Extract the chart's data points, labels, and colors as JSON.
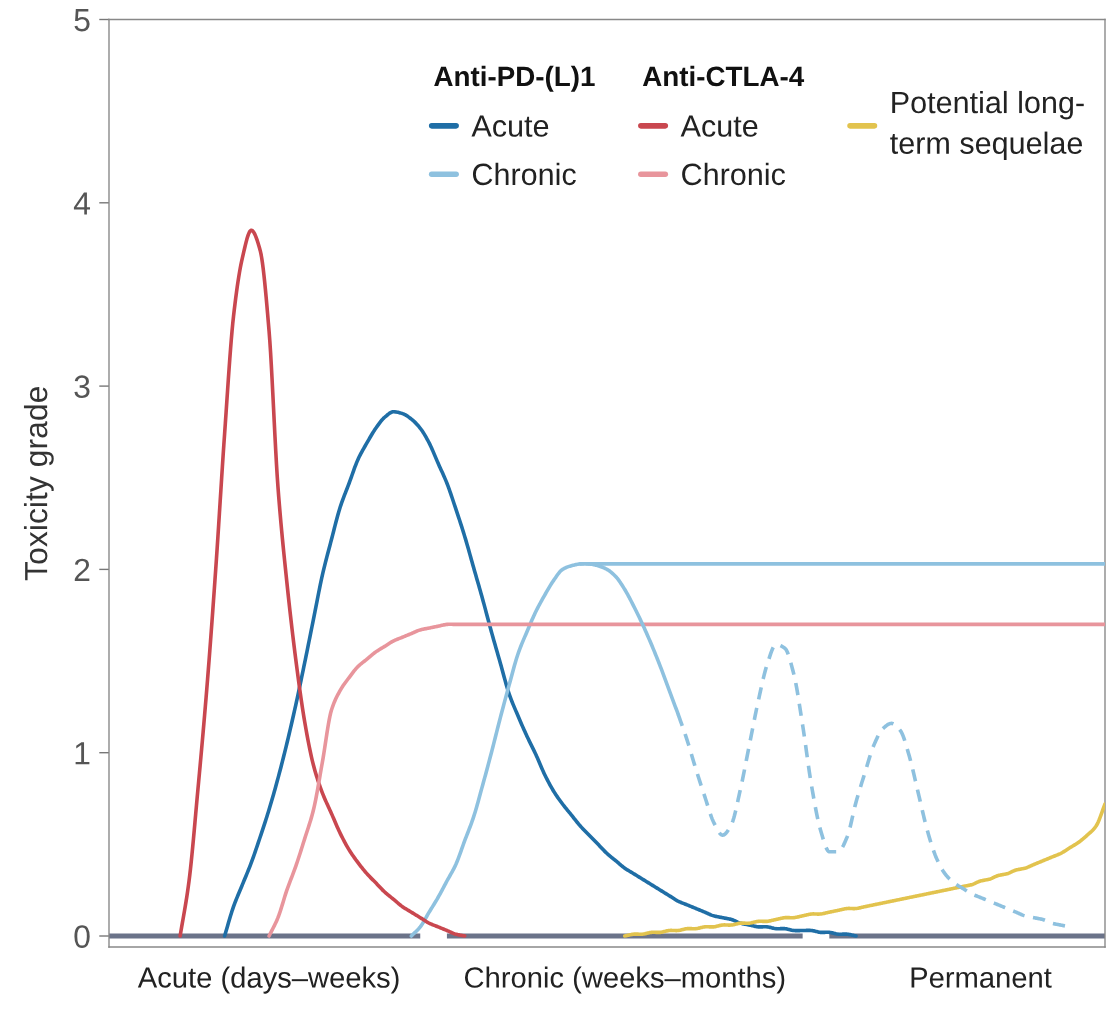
{
  "chart_data": {
    "type": "line",
    "ylabel": "Toxicity grade",
    "categories": [
      null,
      null,
      null,
      null,
      null,
      null,
      null,
      null,
      null,
      null,
      null,
      null,
      null,
      null,
      null,
      null,
      null,
      null,
      "Acute (days–weeks)",
      null,
      null,
      null,
      null,
      null,
      null,
      null,
      null,
      null,
      null,
      null,
      null,
      null,
      null,
      null,
      null,
      null,
      null,
      null,
      null,
      null,
      null,
      null,
      null,
      null,
      null,
      null,
      null,
      null,
      null,
      null,
      null,
      null,
      null,
      null,
      null,
      null,
      null,
      null,
      "Chronic (weeks–months)",
      null,
      null,
      null,
      null,
      null,
      null,
      null,
      null,
      null,
      null,
      null,
      null,
      null,
      null,
      null,
      null,
      null,
      null,
      null,
      null,
      null,
      null,
      null,
      null,
      null,
      null,
      null,
      null,
      null,
      null,
      null,
      null,
      null,
      null,
      null,
      null,
      null,
      null,
      null,
      "Permanent",
      null,
      null,
      null,
      null,
      null,
      null,
      null,
      null,
      null,
      null,
      null,
      null,
      null,
      null
    ],
    "ylim": [
      -0.06,
      5
    ],
    "yticks": [
      0,
      1,
      2,
      3,
      4,
      5
    ],
    "legend": "top right",
    "annotations": [
      "Anti-PD-(L)1",
      "Anti-CTLA-4"
    ],
    "series": [
      {
        "color": "#6b7389",
        "values": [
          0,
          0,
          0,
          0,
          0,
          0,
          0,
          0,
          0,
          0,
          0,
          0,
          0,
          0,
          0,
          0,
          0,
          0,
          0,
          0,
          0,
          0,
          0,
          0,
          0,
          0,
          0,
          0,
          0,
          0,
          0,
          0,
          0,
          0,
          0,
          0,
          null,
          null,
          0,
          0,
          0,
          0,
          0,
          0,
          0,
          0,
          0,
          0,
          0,
          0,
          0,
          0,
          0,
          0,
          0,
          0,
          0,
          0,
          0,
          0,
          0,
          0,
          0,
          0,
          0,
          0,
          0,
          0,
          0,
          0,
          0,
          0,
          0,
          0,
          0,
          0,
          0,
          0,
          0,
          null,
          null,
          0,
          0,
          0,
          0,
          0,
          0,
          0,
          0,
          0,
          0,
          0,
          0,
          0,
          0,
          0,
          0,
          0,
          0,
          0,
          0,
          0,
          0,
          0,
          0,
          0,
          0,
          0,
          0,
          0,
          0,
          0,
          0
        ]
      },
      {
        "name": "Acute",
        "color": "#1f6ea6",
        "values": [
          null,
          null,
          null,
          null,
          null,
          null,
          null,
          null,
          null,
          null,
          null,
          null,
          null,
          0,
          0.16,
          0.28,
          0.4,
          0.54,
          0.69,
          0.86,
          1.05,
          1.26,
          1.49,
          1.73,
          1.97,
          2.16,
          2.34,
          2.47,
          2.6,
          2.69,
          2.77,
          2.83,
          2.86,
          2.85,
          2.82,
          2.77,
          2.69,
          2.58,
          2.47,
          2.33,
          2.18,
          2.01,
          1.84,
          1.66,
          1.49,
          1.32,
          1.2,
          1.09,
          0.99,
          0.88,
          0.79,
          0.72,
          0.66,
          0.6,
          0.55,
          0.5,
          0.45,
          0.41,
          0.37,
          0.34,
          0.31,
          0.28,
          0.25,
          0.22,
          0.19,
          0.17,
          0.15,
          0.13,
          0.11,
          0.1,
          0.09,
          0.07,
          0.06,
          0.05,
          0.05,
          0.04,
          0.04,
          0.03,
          0.03,
          0.03,
          0.02,
          0.02,
          0.01,
          0.01,
          0,
          null,
          null,
          null,
          null,
          null,
          null,
          null,
          null,
          null,
          null,
          null,
          null,
          null,
          null,
          null,
          null,
          null,
          null,
          null,
          null,
          null,
          null,
          null,
          null,
          null,
          null,
          null,
          null
        ]
      },
      {
        "name": "Chronic",
        "color": "#8ec1df",
        "values": [
          null,
          null,
          null,
          null,
          null,
          null,
          null,
          null,
          null,
          null,
          null,
          null,
          null,
          null,
          null,
          null,
          null,
          null,
          null,
          null,
          null,
          null,
          null,
          null,
          null,
          null,
          null,
          null,
          null,
          null,
          null,
          null,
          null,
          null,
          0,
          0.05,
          0.13,
          0.21,
          0.3,
          0.39,
          0.52,
          0.65,
          0.82,
          1.0,
          1.19,
          1.37,
          1.54,
          1.66,
          1.77,
          1.86,
          1.94,
          2.0,
          2.02,
          2.03,
          2.03,
          2.03,
          2.03,
          2.03,
          2.03,
          2.03,
          2.03,
          2.03,
          2.03,
          2.03,
          2.03,
          2.03,
          2.03,
          2.03,
          2.03,
          2.03,
          2.03,
          2.03,
          2.03,
          2.03,
          2.03,
          2.03,
          2.03,
          2.03,
          2.03,
          2.03,
          2.03,
          2.03,
          2.03,
          2.03,
          2.03,
          2.03,
          2.03,
          2.03,
          2.03,
          2.03,
          2.03,
          2.03,
          2.03,
          2.03,
          2.03,
          2.03,
          2.03,
          2.03,
          2.03,
          2.03,
          2.03,
          2.03,
          2.03,
          2.03,
          2.03,
          2.03,
          2.03,
          2.03,
          2.03,
          2.03,
          2.03,
          2.03,
          2.03
        ]
      },
      {
        "name": "Acute",
        "color": "#c9474f",
        "values": [
          null,
          null,
          null,
          null,
          null,
          null,
          null,
          null,
          0,
          0.3,
          0.8,
          1.35,
          2.0,
          2.74,
          3.38,
          3.7,
          3.85,
          3.74,
          3.3,
          2.45,
          1.93,
          1.51,
          1.17,
          0.93,
          0.78,
          0.67,
          0.56,
          0.47,
          0.4,
          0.34,
          0.29,
          0.24,
          0.2,
          0.16,
          0.13,
          0.1,
          0.07,
          0.05,
          0.03,
          0.01,
          0,
          null,
          null,
          null,
          null,
          null,
          null,
          null,
          null,
          null,
          null,
          null,
          null,
          null,
          null,
          null,
          null,
          null,
          null,
          null,
          null,
          null,
          null,
          null,
          null,
          null,
          null,
          null,
          null,
          null,
          null,
          null,
          null,
          null,
          null,
          null,
          null,
          null,
          null,
          null,
          null,
          null,
          null,
          null,
          null,
          null,
          null,
          null,
          null,
          null,
          null,
          null,
          null,
          null,
          null,
          null,
          null,
          null,
          null,
          null,
          null,
          null,
          null,
          null,
          null,
          null,
          null,
          null,
          null,
          null,
          null,
          null,
          null
        ]
      },
      {
        "name": "Chronic",
        "color": "#e8959c",
        "values": [
          null,
          null,
          null,
          null,
          null,
          null,
          null,
          null,
          null,
          null,
          null,
          null,
          null,
          null,
          null,
          null,
          null,
          null,
          0,
          0.1,
          0.25,
          0.38,
          0.53,
          0.69,
          0.95,
          1.23,
          1.34,
          1.41,
          1.47,
          1.51,
          1.55,
          1.58,
          1.61,
          1.63,
          1.65,
          1.67,
          1.68,
          1.69,
          1.7,
          1.7,
          1.7,
          1.7,
          1.7,
          1.7,
          1.7,
          1.7,
          1.7,
          1.7,
          1.7,
          1.7,
          1.7,
          1.7,
          1.7,
          1.7,
          1.7,
          1.7,
          1.7,
          1.7,
          1.7,
          1.7,
          1.7,
          1.7,
          1.7,
          1.7,
          1.7,
          1.7,
          1.7,
          1.7,
          1.7,
          1.7,
          1.7,
          1.7,
          1.7,
          1.7,
          1.7,
          1.7,
          1.7,
          1.7,
          1.7,
          1.7,
          1.7,
          1.7,
          1.7,
          1.7,
          1.7,
          1.7,
          1.7,
          1.7,
          1.7,
          1.7,
          1.7,
          1.7,
          1.7,
          1.7,
          1.7,
          1.7,
          1.7,
          1.7,
          1.7,
          1.7,
          1.7,
          1.7,
          1.7,
          1.7,
          1.7,
          1.7,
          1.7,
          1.7,
          1.7,
          1.7,
          1.7,
          1.7,
          1.7
        ]
      },
      {
        "name": "Potential long-\nterm sequelae",
        "color": "#e2c34e",
        "values": [
          null,
          null,
          null,
          null,
          null,
          null,
          null,
          null,
          null,
          null,
          null,
          null,
          null,
          null,
          null,
          null,
          null,
          null,
          null,
          null,
          null,
          null,
          null,
          null,
          null,
          null,
          null,
          null,
          null,
          null,
          null,
          null,
          null,
          null,
          null,
          null,
          null,
          null,
          null,
          null,
          null,
          null,
          null,
          null,
          null,
          null,
          null,
          null,
          null,
          null,
          null,
          null,
          null,
          null,
          null,
          null,
          null,
          null,
          0,
          0.01,
          0.01,
          0.02,
          0.02,
          0.03,
          0.03,
          0.04,
          0.04,
          0.05,
          0.05,
          0.06,
          0.06,
          0.07,
          0.07,
          0.08,
          0.08,
          0.09,
          0.1,
          0.1,
          0.11,
          0.12,
          0.12,
          0.13,
          0.14,
          0.15,
          0.15,
          0.16,
          0.17,
          0.18,
          0.19,
          0.2,
          0.21,
          0.22,
          0.23,
          0.24,
          0.25,
          0.26,
          0.27,
          0.28,
          0.3,
          0.31,
          0.33,
          0.34,
          0.36,
          0.37,
          0.39,
          0.41,
          0.43,
          0.45,
          0.48,
          0.51,
          0.55,
          0.6,
          0.72
        ]
      },
      {
        "color": "#8ec1df",
        "values": [
          null,
          null,
          null,
          null,
          null,
          null,
          null,
          null,
          null,
          null,
          null,
          null,
          null,
          null,
          null,
          null,
          null,
          null,
          null,
          null,
          null,
          null,
          null,
          null,
          null,
          null,
          null,
          null,
          null,
          null,
          null,
          null,
          null,
          null,
          null,
          null,
          null,
          null,
          null,
          null,
          null,
          null,
          null,
          null,
          null,
          null,
          null,
          null,
          null,
          null,
          null,
          null,
          null,
          2.03,
          2.03,
          2.02,
          2.0,
          1.96,
          1.89,
          1.8,
          1.7,
          1.59,
          1.47,
          1.34,
          1.21,
          null,
          null,
          null,
          null,
          null,
          null,
          null,
          null,
          null,
          null,
          null,
          null,
          null,
          null,
          null,
          null,
          null,
          null,
          null,
          null,
          null,
          null,
          null,
          null,
          null,
          null,
          null,
          null,
          null,
          null,
          null,
          null,
          null,
          null,
          null,
          null,
          null,
          null,
          null,
          null,
          null,
          null,
          null,
          null,
          null,
          null,
          null,
          null
        ]
      },
      {
        "color": "#8ec1df",
        "line_style": "dashed",
        "values": [
          null,
          null,
          null,
          null,
          null,
          null,
          null,
          null,
          null,
          null,
          null,
          null,
          null,
          null,
          null,
          null,
          null,
          null,
          null,
          null,
          null,
          null,
          null,
          null,
          null,
          null,
          null,
          null,
          null,
          null,
          null,
          null,
          null,
          null,
          null,
          null,
          null,
          null,
          null,
          null,
          null,
          null,
          null,
          null,
          null,
          null,
          null,
          null,
          null,
          null,
          null,
          null,
          null,
          null,
          null,
          null,
          null,
          null,
          null,
          null,
          null,
          null,
          null,
          null,
          1.21,
          1.07,
          0.91,
          0.76,
          0.62,
          0.55,
          0.61,
          0.8,
          1.04,
          1.28,
          1.48,
          1.59,
          1.57,
          1.43,
          1.15,
          0.82,
          0.58,
          0.46,
          0.46,
          0.54,
          0.73,
          0.89,
          1.04,
          1.13,
          1.16,
          1.12,
          0.98,
          0.78,
          0.58,
          0.43,
          0.34,
          0.29,
          0.26,
          0.23,
          0.21,
          0.19,
          0.17,
          0.15,
          0.13,
          0.11,
          0.1,
          0.09,
          0.07,
          0.06,
          0.05,
          null,
          null,
          null,
          null
        ]
      }
    ]
  }
}
